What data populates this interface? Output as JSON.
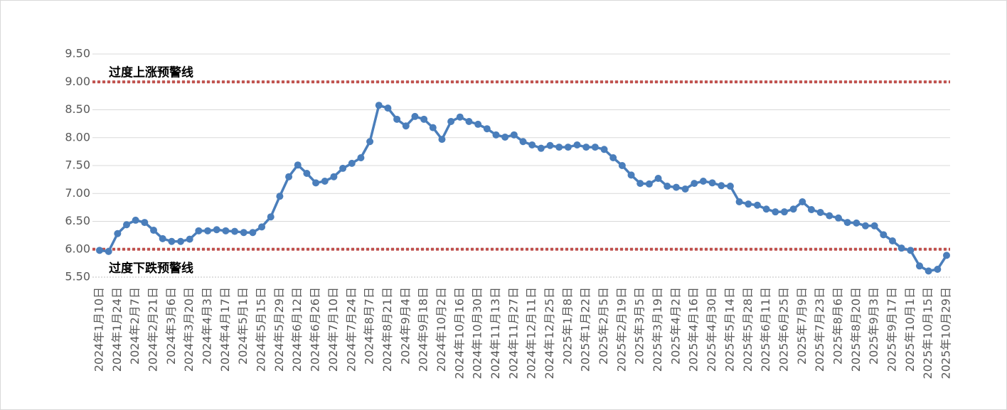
{
  "chart_data": {
    "type": "line",
    "categories": [
      "2024年1月10日",
      null,
      "2024年1月24日",
      null,
      "2024年2月7日",
      null,
      "2024年2月21日",
      null,
      "2024年3月6日",
      null,
      "2024年3月20日",
      null,
      "2024年4月3日",
      null,
      "2024年4月17日",
      null,
      "2024年5月1日",
      null,
      "2024年5月15日",
      null,
      "2024年5月29日",
      null,
      "2024年6月12日",
      null,
      "2024年6月26日",
      null,
      "2024年7月10日",
      null,
      "2024年7月24日",
      null,
      "2024年8月7日",
      null,
      "2024年8月21日",
      null,
      "2024年9月4日",
      null,
      "2024年9月18日",
      null,
      "2024年10月2日",
      null,
      "2024年10月16日",
      null,
      "2024年10月30日",
      null,
      "2024年11月13日",
      null,
      "2024年11月27日",
      null,
      "2024年12月11日",
      null,
      "2024年12月25日",
      null,
      "2025年1月8日",
      null,
      "2025年1月22日",
      null,
      "2025年2月5日",
      null,
      "2025年2月19日",
      null,
      "2025年3月5日",
      null,
      "2025年3月19日",
      null,
      "2025年4月2日",
      null,
      "2025年4月16日",
      null,
      "2025年4月30日",
      null,
      "2025年5月14日",
      null,
      "2025年5月28日",
      null,
      "2025年6月11日",
      null,
      "2025年6月25日",
      null,
      "2025年7月9日",
      null,
      "2025年7月23日",
      null,
      "2025年8月6日",
      null,
      "2025年8月20日",
      null,
      "2025年9月3日",
      null,
      "2025年9月17日",
      null,
      "2025年10月1日",
      null,
      "2025年10月15日",
      null,
      "2025年10月29日"
    ],
    "values": [
      5.98,
      5.96,
      6.28,
      6.44,
      6.52,
      6.48,
      6.34,
      6.19,
      6.14,
      6.14,
      6.18,
      6.33,
      6.33,
      6.35,
      6.33,
      6.32,
      6.3,
      6.3,
      6.4,
      6.58,
      6.95,
      7.3,
      7.51,
      7.36,
      7.19,
      7.22,
      7.3,
      7.45,
      7.54,
      7.64,
      7.93,
      8.58,
      8.53,
      8.33,
      8.21,
      8.38,
      8.33,
      8.18,
      7.97,
      8.29,
      8.37,
      8.29,
      8.24,
      8.16,
      8.05,
      8.01,
      8.05,
      7.93,
      7.87,
      7.81,
      7.86,
      7.83,
      7.83,
      7.87,
      7.83,
      7.83,
      7.79,
      7.64,
      7.5,
      7.33,
      7.18,
      7.17,
      7.27,
      7.13,
      7.11,
      7.08,
      7.18,
      7.22,
      7.19,
      7.14,
      7.13,
      6.85,
      6.81,
      6.79,
      6.72,
      6.67,
      6.67,
      6.72,
      6.85,
      6.71,
      6.66,
      6.6,
      6.56,
      6.48,
      6.47,
      6.42,
      6.42,
      6.26,
      6.15,
      6.02,
      5.98,
      5.7,
      5.61,
      5.64,
      5.89
    ],
    "color": "#4a7ebb",
    "ylim": [
      5.5,
      9.5
    ],
    "yticks": [
      {
        "value": 5.5,
        "label": "5.50"
      },
      {
        "value": 6,
        "label": "6.00"
      },
      {
        "value": 6.5,
        "label": "6.50"
      },
      {
        "value": 7,
        "label": "7.00"
      },
      {
        "value": 7.5,
        "label": "7.50"
      },
      {
        "value": 8,
        "label": "8.00"
      },
      {
        "value": 8.5,
        "label": "8.50"
      },
      {
        "value": 9,
        "label": "9.00"
      },
      {
        "value": 9.5,
        "label": "9.50"
      }
    ],
    "grid": true,
    "reference_lines": [
      {
        "value": 9,
        "label": "过度上涨预警线",
        "color": "#c0504d"
      },
      {
        "value": 6,
        "label": "过度下跌预警线",
        "color": "#c0504d"
      }
    ]
  }
}
